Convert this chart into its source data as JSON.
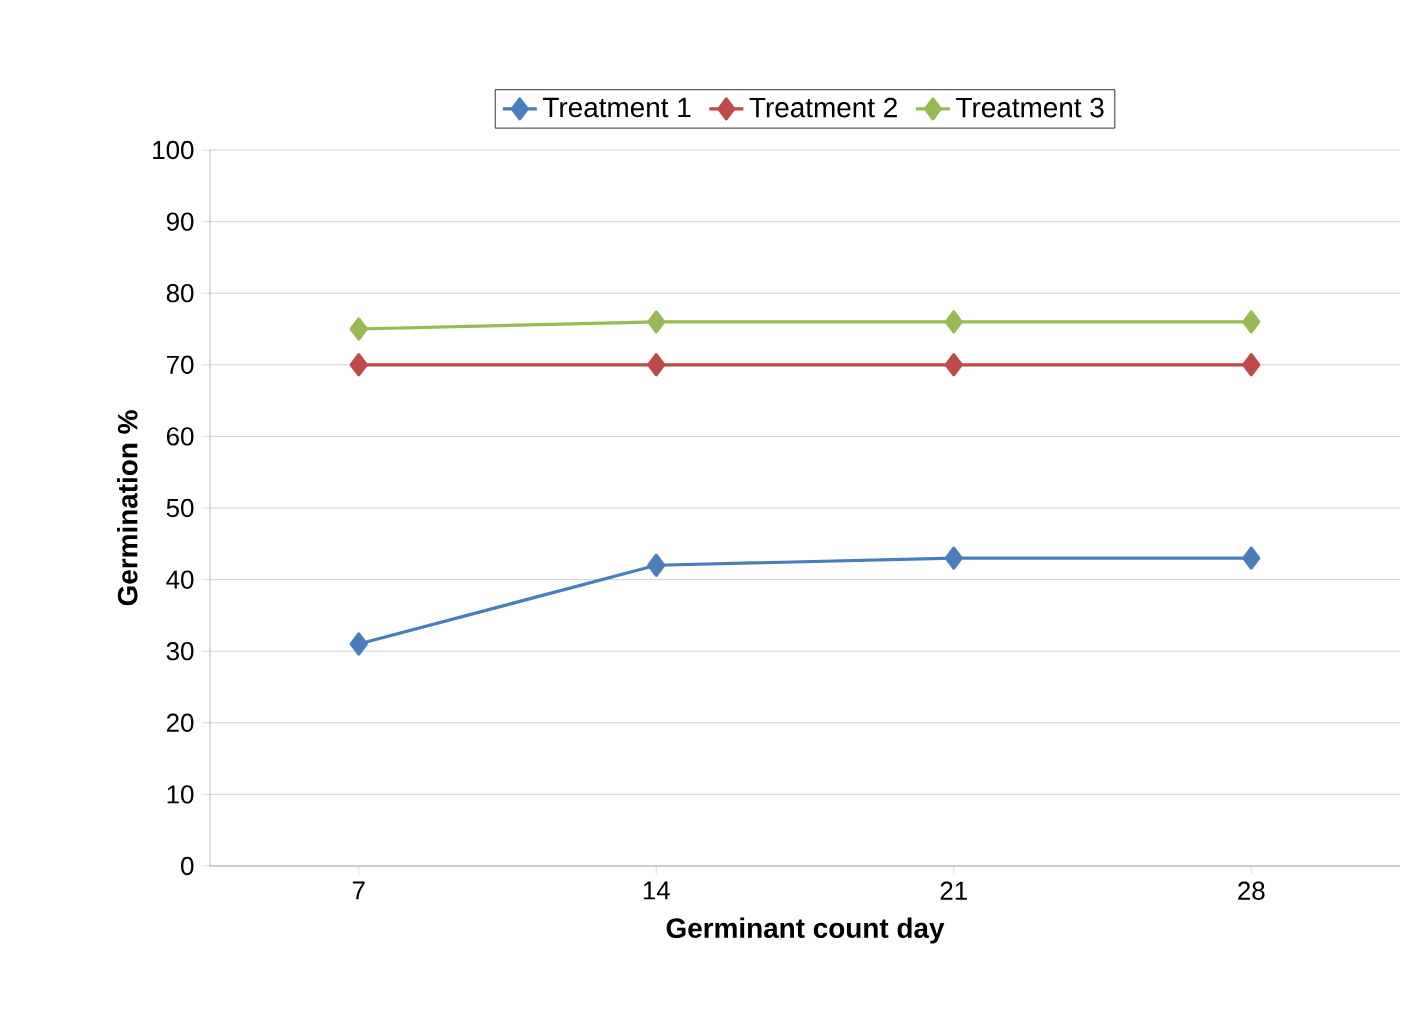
{
  "chart_data": {
    "type": "line",
    "xlabel": "Germinant count day",
    "ylabel": "Germination %",
    "categories": [
      "7",
      "14",
      "21",
      "28"
    ],
    "series": [
      {
        "name": "Treatment 1",
        "color": "#4a7ebb",
        "values": [
          31,
          42,
          43,
          43
        ]
      },
      {
        "name": "Treatment 2",
        "color": "#be4b48",
        "values": [
          70,
          70,
          70,
          70
        ]
      },
      {
        "name": "Treatment 3",
        "color": "#98b954",
        "values": [
          75,
          76,
          76,
          76
        ]
      }
    ],
    "ylim": [
      0,
      100
    ],
    "yticks": [
      0,
      10,
      20,
      30,
      40,
      50,
      60,
      70,
      80,
      90,
      100
    ],
    "grid": "y",
    "legend": "top",
    "marker": "diamond",
    "line_style": "solid"
  }
}
